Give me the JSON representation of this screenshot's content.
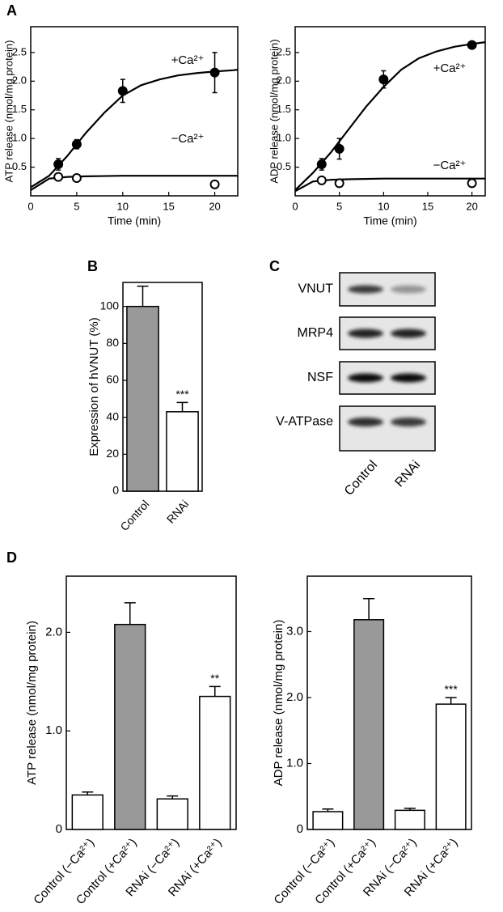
{
  "chart_data": [
    {
      "type": "scatter",
      "panel": "A",
      "xlabel": "Time (min)",
      "ylabel": "ATP release (nmol/mg protein)",
      "xlim": [
        0,
        22.5
      ],
      "ylim": [
        0,
        2.95
      ],
      "xticks": [
        0,
        5,
        10,
        15,
        20
      ],
      "yticks": [
        0.5,
        {
          "value": 1,
          "label": "1.0"
        },
        1.5,
        {
          "value": 2,
          "label": "2.0"
        },
        2.5
      ],
      "series": [
        {
          "name": "+Ca²⁺",
          "color": "#000000",
          "marker_fill": "#000000",
          "x": [
            3,
            5,
            10,
            20
          ],
          "values": [
            0.55,
            0.9,
            1.83,
            2.15
          ],
          "errors": [
            0.1,
            0.08,
            0.2,
            0.35
          ],
          "curve": {
            "x": [
              0,
              2,
              4,
              6,
              8,
              10,
              12,
              14,
              16,
              18,
              20,
              22,
              22.5
            ],
            "y": [
              0.15,
              0.35,
              0.7,
              1.1,
              1.45,
              1.75,
              1.93,
              2.03,
              2.1,
              2.14,
              2.17,
              2.19,
              2.2
            ]
          }
        },
        {
          "name": "−Ca²⁺",
          "color": "#000000",
          "marker_fill": "#ffffff",
          "x": [
            3,
            5,
            20
          ],
          "values": [
            0.33,
            0.31,
            0.2
          ],
          "errors": [
            0.06,
            0.03,
            0.02
          ],
          "curve": {
            "x": [
              0,
              2,
              4,
              6,
              10,
              15,
              20,
              22.5
            ],
            "y": [
              0.1,
              0.3,
              0.33,
              0.34,
              0.35,
              0.35,
              0.35,
              0.35
            ]
          }
        }
      ]
    },
    {
      "type": "scatter",
      "xlabel": "Time (min)",
      "ylabel": "ADP release (nmol/mg protein)",
      "xlim": [
        0,
        21.5
      ],
      "ylim": [
        0,
        2.95
      ],
      "xticks": [
        0,
        5,
        10,
        15,
        20
      ],
      "yticks": [
        0.5,
        {
          "value": 1,
          "label": "1.0"
        },
        1.5,
        {
          "value": 2,
          "label": "2.0"
        },
        2.5
      ],
      "series": [
        {
          "name": "+Ca²⁺",
          "color": "#000000",
          "marker_fill": "#000000",
          "x": [
            3,
            5,
            10,
            20
          ],
          "values": [
            0.55,
            0.82,
            2.03,
            2.63
          ],
          "errors": [
            0.1,
            0.18,
            0.15,
            0.05
          ],
          "curve": {
            "x": [
              0,
              2,
              4,
              6,
              8,
              10,
              12,
              14,
              16,
              18,
              20,
              21.5
            ],
            "y": [
              0.1,
              0.4,
              0.75,
              1.15,
              1.55,
              1.9,
              2.2,
              2.4,
              2.52,
              2.6,
              2.65,
              2.68
            ]
          }
        },
        {
          "name": "−Ca²⁺",
          "color": "#000000",
          "marker_fill": "#ffffff",
          "x": [
            3,
            5,
            20
          ],
          "values": [
            0.27,
            0.22,
            0.22
          ],
          "errors": [
            0.03,
            0.02,
            0.02
          ],
          "curve": {
            "x": [
              0,
              2,
              4,
              6,
              10,
              15,
              20,
              21.5
            ],
            "y": [
              0.08,
              0.25,
              0.28,
              0.29,
              0.3,
              0.3,
              0.3,
              0.3
            ]
          }
        }
      ]
    },
    {
      "type": "bar",
      "panel": "B",
      "ylabel": "Expression of hVNUT (%)",
      "ylim": [
        0,
        113
      ],
      "yticks": [
        0,
        20,
        40,
        60,
        80,
        100
      ],
      "categories": [
        "Control",
        "RNAi"
      ],
      "values": [
        100,
        43
      ],
      "errors": [
        11,
        5
      ],
      "colors": [
        "#999999",
        "#ffffff"
      ],
      "value_annotations": [
        null,
        "***"
      ]
    },
    {
      "type": "bar",
      "panel": "D",
      "ylabel": "ATP release (nmol/mg protein)",
      "ylim": [
        0,
        2.57
      ],
      "yticks": [
        0,
        {
          "value": 1,
          "label": "1.0"
        },
        {
          "value": 2,
          "label": "2.0"
        }
      ],
      "categories": [
        "Control (−Ca²⁺)",
        "Control (+Ca²⁺)",
        "RNAi (−Ca²⁺)",
        "RNAi (+Ca²⁺)"
      ],
      "values": [
        0.35,
        2.08,
        0.31,
        1.35
      ],
      "errors": [
        0.03,
        0.22,
        0.03,
        0.1
      ],
      "colors": [
        "#ffffff",
        "#999999",
        "#ffffff",
        "#ffffff"
      ],
      "value_annotations": [
        null,
        null,
        null,
        "**"
      ]
    },
    {
      "type": "bar",
      "ylabel": "ADP release (nmol/mg protein)",
      "ylim": [
        0,
        3.84
      ],
      "yticks": [
        0,
        {
          "value": 1,
          "label": "1.0"
        },
        {
          "value": 2,
          "label": "2.0"
        },
        {
          "value": 3,
          "label": "3.0"
        }
      ],
      "categories": [
        "Control (−Ca²⁺)",
        "Control (+Ca²⁺)",
        "RNAi (−Ca²⁺)",
        "RNAi (+Ca²⁺)"
      ],
      "values": [
        0.27,
        3.18,
        0.29,
        1.9
      ],
      "errors": [
        0.04,
        0.32,
        0.03,
        0.1
      ],
      "colors": [
        "#ffffff",
        "#999999",
        "#ffffff",
        "#ffffff"
      ],
      "value_annotations": [
        null,
        null,
        null,
        "***"
      ]
    }
  ],
  "blot": {
    "panel": "C",
    "rows": [
      "VNUT",
      "MRP4",
      "NSF",
      "V-ATPase"
    ],
    "lanes": [
      "Control",
      "RNAi"
    ]
  }
}
